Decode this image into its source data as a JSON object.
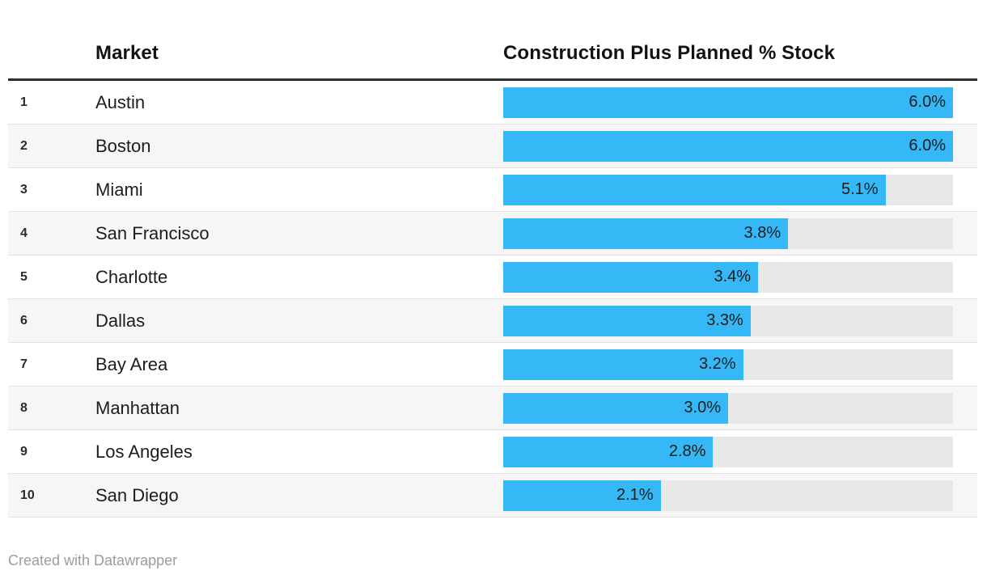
{
  "header": {
    "columns": {
      "market": "Market",
      "value": "Construction Plus Planned % Stock"
    }
  },
  "chart_data": {
    "type": "bar",
    "title": "",
    "columns": {
      "market": "Market",
      "value": "Construction Plus Planned % Stock"
    },
    "xlim": [
      0,
      6.0
    ],
    "legend": "none",
    "grid": "off",
    "orientation": "horizontal",
    "categories": [
      "Austin",
      "Boston",
      "Miami",
      "San Francisco",
      "Charlotte",
      "Dallas",
      "Bay Area",
      "Manhattan",
      "Los Angeles",
      "San Diego"
    ],
    "values": [
      6.0,
      6.0,
      5.1,
      3.8,
      3.4,
      3.3,
      3.2,
      3.0,
      2.8,
      2.1
    ],
    "rows": [
      {
        "rank": "1",
        "market": "Austin",
        "value": 6.0,
        "label": "6.0%"
      },
      {
        "rank": "2",
        "market": "Boston",
        "value": 6.0,
        "label": "6.0%"
      },
      {
        "rank": "3",
        "market": "Miami",
        "value": 5.1,
        "label": "5.1%"
      },
      {
        "rank": "4",
        "market": "San Francisco",
        "value": 3.8,
        "label": "3.8%"
      },
      {
        "rank": "5",
        "market": "Charlotte",
        "value": 3.4,
        "label": "3.4%"
      },
      {
        "rank": "6",
        "market": "Dallas",
        "value": 3.3,
        "label": "3.3%"
      },
      {
        "rank": "7",
        "market": "Bay Area",
        "value": 3.2,
        "label": "3.2%"
      },
      {
        "rank": "8",
        "market": "Manhattan",
        "value": 3.0,
        "label": "3.0%"
      },
      {
        "rank": "9",
        "market": "Los Angeles",
        "value": 2.8,
        "label": "2.8%"
      },
      {
        "rank": "10",
        "market": "San Diego",
        "value": 2.1,
        "label": "2.1%"
      }
    ]
  },
  "colors": {
    "bar": "#35b8f5",
    "track": "#e8e8e8",
    "row_alt": "#f6f6f6",
    "separator": "#e3e3e3",
    "header_rule": "#2e2e2e",
    "footer_text": "#9c9c9c"
  },
  "footer": {
    "credit": "Created with Datawrapper"
  }
}
